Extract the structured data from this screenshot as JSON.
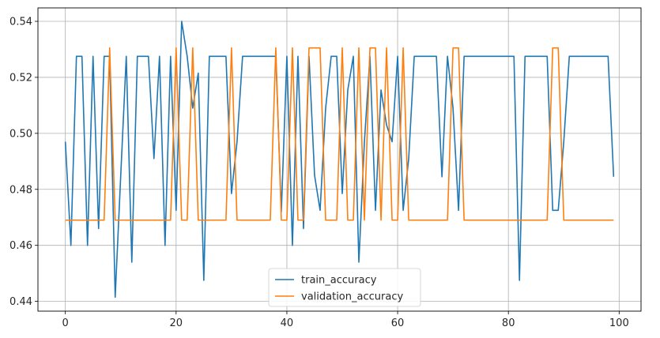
{
  "chart_data": {
    "type": "line",
    "grid": true,
    "legend_position": "bottom-center",
    "xlim": [
      -4.95,
      103.95
    ],
    "ylim": [
      0.4365,
      0.5448
    ],
    "xticks": [
      0,
      20,
      40,
      60,
      80,
      100
    ],
    "yticks": [
      0.44,
      0.46,
      0.48,
      0.5,
      0.52,
      0.54
    ],
    "xtick_labels": [
      "0",
      "20",
      "40",
      "60",
      "80",
      "100"
    ],
    "ytick_labels": [
      "0.44",
      "0.46",
      "0.48",
      "0.50",
      "0.52",
      "0.54"
    ],
    "x": [
      0,
      1,
      2,
      3,
      4,
      5,
      6,
      7,
      8,
      9,
      10,
      11,
      12,
      13,
      14,
      15,
      16,
      17,
      18,
      19,
      20,
      21,
      22,
      23,
      24,
      25,
      26,
      27,
      28,
      29,
      30,
      31,
      32,
      33,
      34,
      35,
      36,
      37,
      38,
      39,
      40,
      41,
      42,
      43,
      44,
      45,
      46,
      47,
      48,
      49,
      50,
      51,
      52,
      53,
      54,
      55,
      56,
      57,
      58,
      59,
      60,
      61,
      62,
      63,
      64,
      65,
      66,
      67,
      68,
      69,
      70,
      71,
      72,
      73,
      74,
      75,
      76,
      77,
      78,
      79,
      80,
      81,
      82,
      83,
      84,
      85,
      86,
      87,
      88,
      89,
      90,
      91,
      92,
      93,
      94,
      95,
      96,
      97,
      98,
      99
    ],
    "series": [
      {
        "name": "train_accuracy",
        "color": "#1f77b4",
        "values": [
          0.497,
          0.46,
          0.5275,
          0.5275,
          0.46,
          0.5275,
          0.466,
          0.5275,
          0.5275,
          0.4415,
          0.485,
          0.5275,
          0.454,
          0.5275,
          0.5275,
          0.5275,
          0.491,
          0.5275,
          0.46,
          0.5275,
          0.4725,
          0.54,
          0.5275,
          0.509,
          0.5215,
          0.4475,
          0.5275,
          0.5275,
          0.5275,
          0.5275,
          0.4785,
          0.497,
          0.5275,
          0.5275,
          0.5275,
          0.5275,
          0.5275,
          0.5275,
          0.5275,
          0.472,
          0.5275,
          0.46,
          0.5275,
          0.466,
          0.5275,
          0.485,
          0.4725,
          0.509,
          0.5275,
          0.5275,
          0.4785,
          0.5155,
          0.5275,
          0.454,
          0.497,
          0.5275,
          0.4725,
          0.5155,
          0.503,
          0.497,
          0.5275,
          0.4725,
          0.491,
          0.5275,
          0.5275,
          0.5275,
          0.5275,
          0.5275,
          0.4845,
          0.5275,
          0.509,
          0.4725,
          0.5275,
          0.5275,
          0.5275,
          0.5275,
          0.5275,
          0.5275,
          0.5275,
          0.5275,
          0.5275,
          0.5275,
          0.4475,
          0.5275,
          0.5275,
          0.5275,
          0.5275,
          0.5275,
          0.4725,
          0.4725,
          0.497,
          0.5275,
          0.5275,
          0.5275,
          0.5275,
          0.5275,
          0.5275,
          0.5275,
          0.5275,
          0.4845
        ]
      },
      {
        "name": "validation_accuracy",
        "color": "#ff7f0e",
        "values": [
          0.469,
          0.469,
          0.469,
          0.469,
          0.469,
          0.469,
          0.469,
          0.469,
          0.5305,
          0.469,
          0.469,
          0.469,
          0.469,
          0.469,
          0.469,
          0.469,
          0.469,
          0.469,
          0.469,
          0.469,
          0.5305,
          0.469,
          0.469,
          0.5305,
          0.469,
          0.469,
          0.469,
          0.469,
          0.469,
          0.469,
          0.5305,
          0.469,
          0.469,
          0.469,
          0.469,
          0.469,
          0.469,
          0.469,
          0.5305,
          0.469,
          0.469,
          0.5305,
          0.469,
          0.469,
          0.5305,
          0.5305,
          0.5305,
          0.469,
          0.469,
          0.469,
          0.5305,
          0.469,
          0.469,
          0.5305,
          0.469,
          0.5305,
          0.5305,
          0.469,
          0.5305,
          0.469,
          0.469,
          0.5305,
          0.469,
          0.469,
          0.469,
          0.469,
          0.469,
          0.469,
          0.469,
          0.469,
          0.5305,
          0.5305,
          0.469,
          0.469,
          0.469,
          0.469,
          0.469,
          0.469,
          0.469,
          0.469,
          0.469,
          0.469,
          0.469,
          0.469,
          0.469,
          0.469,
          0.469,
          0.469,
          0.5305,
          0.5305,
          0.469,
          0.469,
          0.469,
          0.469,
          0.469,
          0.469,
          0.469,
          0.469,
          0.469,
          0.469
        ]
      }
    ]
  }
}
